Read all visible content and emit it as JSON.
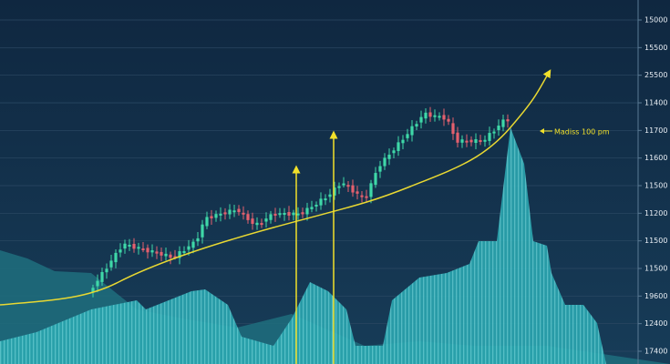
{
  "axis_labels": [
    "15000",
    "15500",
    "25500",
    "11400",
    "11700",
    "11600",
    "11500",
    "11200",
    "11500",
    "11500",
    "19600",
    "12400",
    "17400"
  ],
  "annotation": "Madiss 100 pm"
}
